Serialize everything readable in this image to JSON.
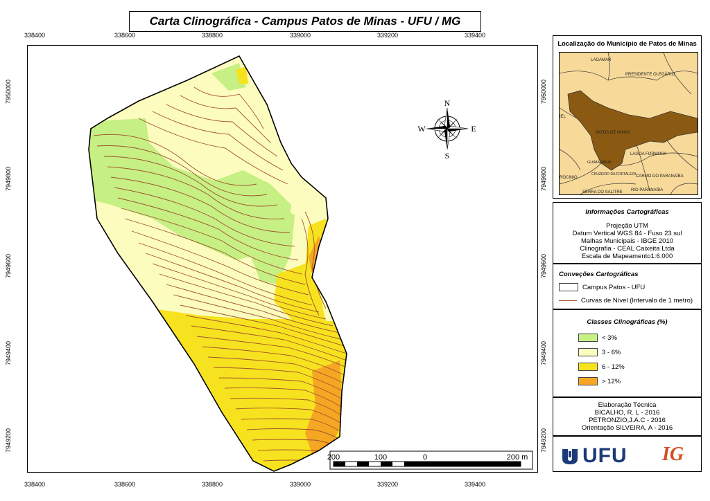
{
  "title": "Carta Clinográfica - Campus Patos de Minas - UFU / MG",
  "x_ticks": [
    "338400",
    "338600",
    "338800",
    "339000",
    "339200",
    "339400"
  ],
  "y_ticks": [
    "7950000",
    "7949800",
    "7949600",
    "7949400",
    "7949200"
  ],
  "compass": {
    "n": "N",
    "s": "S",
    "e": "E",
    "w": "W"
  },
  "scale_bar": {
    "labels": [
      "200",
      "100",
      "0",
      "200 m"
    ]
  },
  "location_panel": {
    "title": "Localização do Município de Patos de Minas",
    "places": [
      "LAGAMAR",
      "PRESIDENTE OLEGÁRIO",
      "PATOS DE MINAS",
      "LAGOA FORMOSA",
      "GUIMARÂNIA",
      "CRUZEIRO DA FORTALEZA",
      "CARMO DO PARANAÍBA",
      "SERRA DO SALITRE",
      "RIO PARANAÍBA",
      "RÓCINIO",
      "IEL"
    ]
  },
  "info_panel": {
    "title": "Informações  Cartográficas",
    "lines": [
      "Projeção UTM",
      "Datum Vertical WGS 84 - Fuso 23 sul",
      "Malhas Municipais - IBGE 2010",
      "Clinografia - CEAL  Caixeita Ltda",
      "Escala de Mapeamento1:6.000"
    ]
  },
  "conventions": {
    "title": "Conveções Cartográficas",
    "items": [
      {
        "label": "Campus Patos - UFU",
        "color": "#ffffff"
      },
      {
        "label": "Curvas de Nível  (Intervalo de 1 metro)",
        "color": "#a0522d"
      }
    ]
  },
  "classes": {
    "title": "Classes Clinográficas (%)",
    "items": [
      {
        "label": "< 3%",
        "color": "#c6ef84"
      },
      {
        "label": "3 - 6%",
        "color": "#fdfcbf"
      },
      {
        "label": "6 - 12%",
        "color": "#f7e21f"
      },
      {
        "label": "> 12%",
        "color": "#f5a623"
      }
    ]
  },
  "credits": {
    "lines": [
      "Elaboração Técnica",
      "BICALHO, R. L - 2016",
      "PETRONZIO,J.A.C - 2016",
      "Orientação SILVEIRA, A - 2016"
    ]
  },
  "logos": {
    "ufu": "UFU",
    "ig": "IG"
  }
}
